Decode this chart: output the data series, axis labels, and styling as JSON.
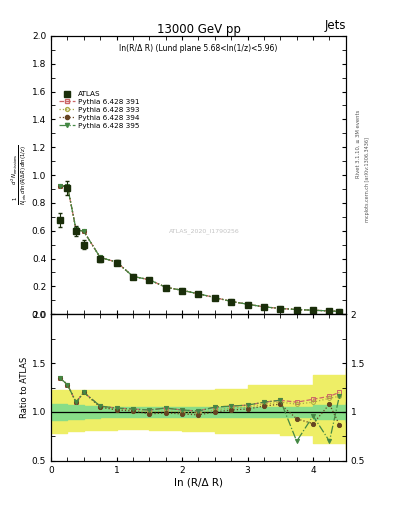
{
  "title": "13000 GeV pp",
  "title_right": "Jets",
  "annotation": "ln(R/Δ R) (Lund plane 5.68<ln(1/z)<5.96)",
  "watermark": "ATLAS_2020_I1790256",
  "ylabel_main": "$\\frac{1}{N_{\\mathrm{jets}}}\\frac{d^2 N_{\\mathrm{emissions}}}{d\\ln(R/\\Delta R)\\, d\\ln(1/z)}$",
  "ylabel_ratio": "Ratio to ATLAS",
  "xlabel": "ln (R/Δ R)",
  "right_label": "Rivet 3.1.10, ≥ 3M events",
  "right_label2": "mcplots.cern.ch [arXiv:1306.3436]",
  "xlim": [
    0,
    4.5
  ],
  "ylim_main": [
    0,
    2.0
  ],
  "ylim_ratio": [
    0.5,
    2.0
  ],
  "atlas_x": [
    0.13,
    0.25,
    0.38,
    0.5,
    0.75,
    1.0,
    1.25,
    1.5,
    1.75,
    2.0,
    2.25,
    2.5,
    2.75,
    3.0,
    3.25,
    3.5,
    3.75,
    4.0,
    4.25,
    4.4
  ],
  "atlas_y": [
    0.68,
    0.91,
    0.6,
    0.5,
    0.4,
    0.37,
    0.27,
    0.245,
    0.19,
    0.17,
    0.145,
    0.115,
    0.09,
    0.07,
    0.052,
    0.04,
    0.033,
    0.028,
    0.022,
    0.018
  ],
  "atlas_yerr": [
    0.05,
    0.05,
    0.035,
    0.03,
    0.022,
    0.018,
    0.013,
    0.013,
    0.01,
    0.01,
    0.009,
    0.008,
    0.007,
    0.006,
    0.005,
    0.004,
    0.004,
    0.003,
    0.003,
    0.003
  ],
  "pythia_x": [
    0.13,
    0.25,
    0.38,
    0.5,
    0.75,
    1.0,
    1.25,
    1.5,
    1.75,
    2.0,
    2.25,
    2.5,
    2.75,
    3.0,
    3.25,
    3.5,
    3.75,
    4.0,
    4.25,
    4.4
  ],
  "p391_y": [
    0.92,
    0.92,
    0.61,
    0.595,
    0.408,
    0.375,
    0.272,
    0.248,
    0.194,
    0.172,
    0.147,
    0.12,
    0.092,
    0.072,
    0.053,
    0.042,
    0.034,
    0.029,
    0.024,
    0.02
  ],
  "p393_y": [
    0.92,
    0.92,
    0.61,
    0.595,
    0.408,
    0.375,
    0.272,
    0.248,
    0.194,
    0.172,
    0.147,
    0.12,
    0.092,
    0.072,
    0.053,
    0.042,
    0.034,
    0.029,
    0.024,
    0.02
  ],
  "p394_y": [
    0.92,
    0.92,
    0.61,
    0.595,
    0.408,
    0.375,
    0.272,
    0.248,
    0.194,
    0.172,
    0.147,
    0.12,
    0.092,
    0.072,
    0.053,
    0.042,
    0.034,
    0.029,
    0.024,
    0.02
  ],
  "p395_y": [
    0.92,
    0.92,
    0.61,
    0.595,
    0.408,
    0.375,
    0.272,
    0.248,
    0.194,
    0.172,
    0.147,
    0.12,
    0.092,
    0.072,
    0.053,
    0.042,
    0.034,
    0.029,
    0.024,
    0.02
  ],
  "ratio391": [
    1.35,
    1.28,
    1.1,
    1.2,
    1.06,
    1.04,
    1.03,
    1.02,
    1.04,
    1.02,
    1.01,
    1.05,
    1.06,
    1.07,
    1.1,
    1.12,
    1.1,
    1.13,
    1.16,
    1.2
  ],
  "ratio393": [
    1.35,
    1.28,
    1.1,
    1.2,
    1.05,
    1.03,
    1.02,
    1.0,
    1.01,
    1.0,
    0.99,
    1.02,
    1.04,
    1.05,
    1.08,
    1.1,
    1.08,
    1.1,
    1.14,
    1.16
  ],
  "ratio394": [
    1.35,
    1.28,
    1.1,
    1.2,
    1.05,
    1.02,
    1.01,
    0.98,
    0.99,
    0.98,
    0.97,
    1.0,
    1.02,
    1.03,
    1.06,
    1.08,
    0.93,
    0.88,
    1.08,
    0.87
  ],
  "ratio395": [
    1.35,
    1.28,
    1.1,
    1.2,
    1.06,
    1.04,
    1.03,
    1.02,
    1.04,
    1.02,
    1.01,
    1.05,
    1.06,
    1.07,
    1.1,
    1.12,
    0.7,
    0.96,
    0.7,
    1.16
  ],
  "band_x": [
    0.0,
    0.25,
    0.5,
    0.75,
    1.0,
    1.5,
    2.0,
    2.5,
    3.0,
    3.5,
    4.0,
    4.5
  ],
  "green_lo": [
    0.92,
    0.93,
    0.94,
    0.95,
    0.95,
    0.95,
    0.95,
    0.95,
    0.95,
    0.95,
    0.93,
    0.9
  ],
  "green_hi": [
    1.08,
    1.07,
    1.06,
    1.05,
    1.05,
    1.05,
    1.05,
    1.05,
    1.05,
    1.05,
    1.07,
    1.1
  ],
  "yellow_lo": [
    0.78,
    0.8,
    0.82,
    0.82,
    0.83,
    0.82,
    0.8,
    0.78,
    0.78,
    0.76,
    0.68,
    0.62
  ],
  "yellow_hi": [
    1.22,
    1.22,
    1.22,
    1.22,
    1.22,
    1.22,
    1.22,
    1.24,
    1.28,
    1.28,
    1.38,
    1.45
  ],
  "color_391": "#cc6666",
  "color_393": "#aaaa44",
  "color_394": "#664422",
  "color_395": "#448844",
  "atlas_color": "#1a2e0a",
  "bg_color": "#ffffff",
  "green_color": "#88dd88",
  "yellow_color": "#eeee66"
}
